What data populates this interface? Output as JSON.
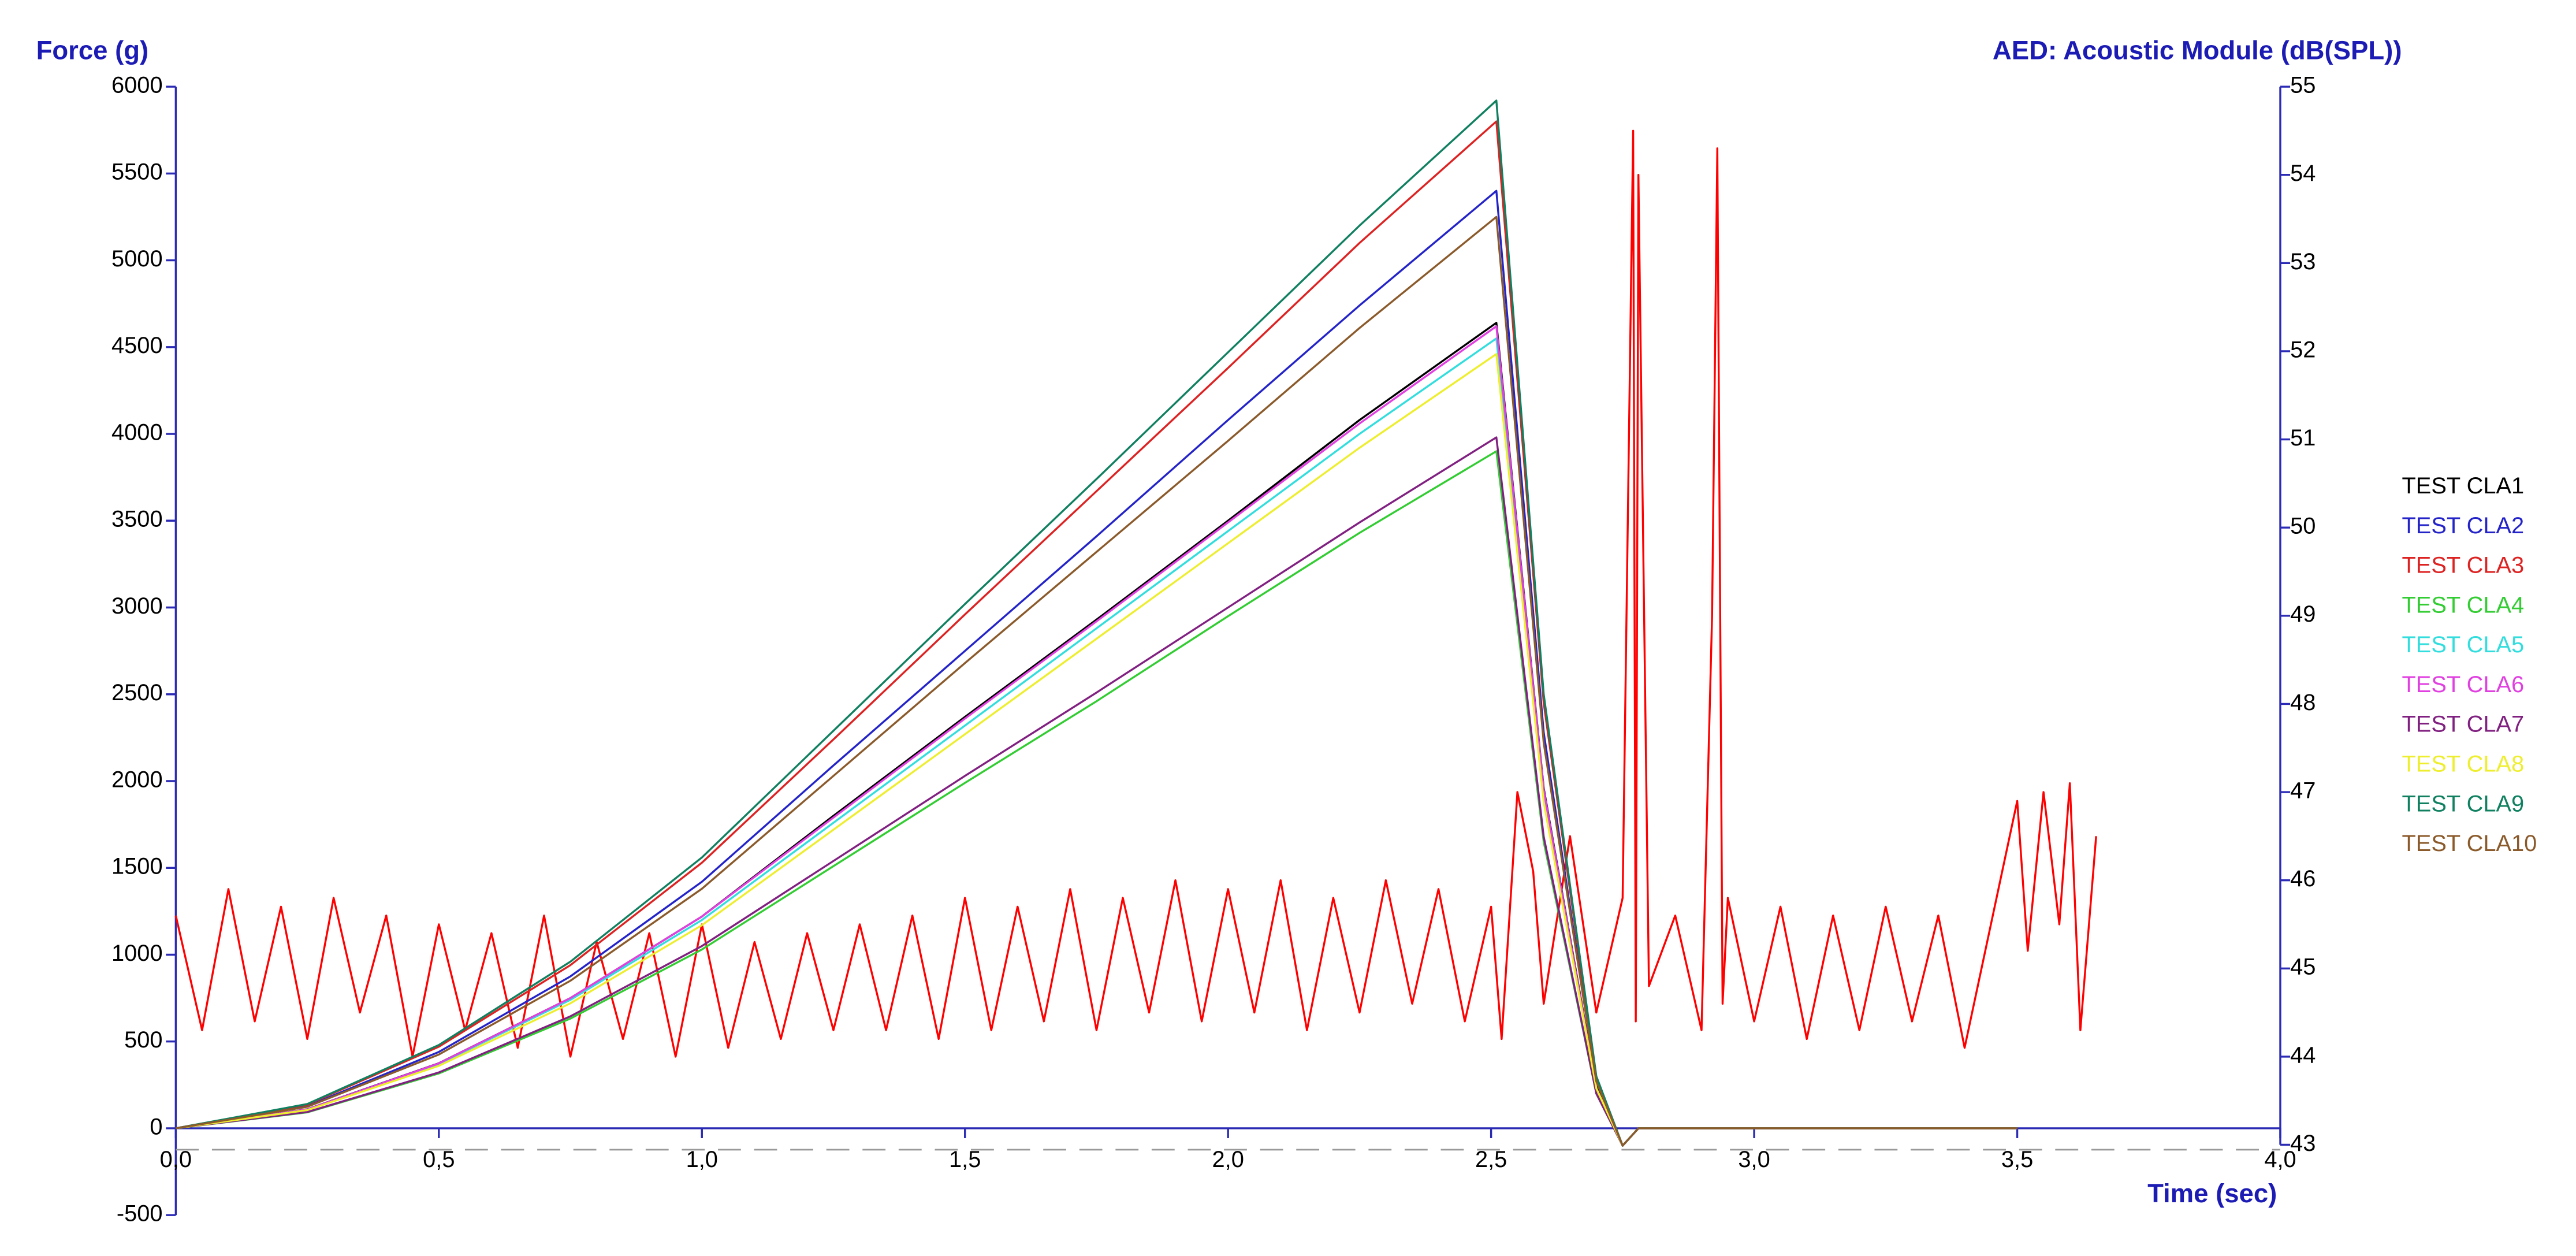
{
  "chart_data": {
    "type": "line",
    "y_label": "Force (g)",
    "y2_label": "AED: Acoustic Module (dB(SPL))",
    "x_label": "Time (sec)",
    "xlim": [
      0,
      4
    ],
    "xticks": [
      {
        "value": 0,
        "label": "0,0"
      },
      {
        "value": 0.5,
        "label": "0,5"
      },
      {
        "value": 1,
        "label": "1,0"
      },
      {
        "value": 1.5,
        "label": "1,5"
      },
      {
        "value": 2,
        "label": "2,0"
      },
      {
        "value": 2.5,
        "label": "2,5"
      },
      {
        "value": 3,
        "label": "3,0"
      },
      {
        "value": 3.5,
        "label": "3,5"
      },
      {
        "value": 4,
        "label": "4,0"
      }
    ],
    "ylim": [
      -500,
      6000
    ],
    "yticks": [
      -500,
      0,
      500,
      1000,
      1500,
      2000,
      2500,
      3000,
      3500,
      4000,
      4500,
      5000,
      5500,
      6000
    ],
    "y2lim": [
      43,
      55
    ],
    "y2ticks": [
      43,
      44,
      45,
      46,
      47,
      48,
      49,
      50,
      51,
      52,
      53,
      54,
      55
    ],
    "legend": "right",
    "x": [
      0,
      0.25,
      0.5,
      0.75,
      1,
      1.25,
      1.5,
      1.75,
      2,
      2.25,
      2.51,
      2.6,
      2.7,
      2.75,
      2.78,
      3.5
    ],
    "series": [
      {
        "name": "TEST CLA1",
        "color": "#000000",
        "values": [
          0,
          110,
          375,
          750,
          1220,
          1800,
          2370,
          2930,
          3500,
          4080,
          4640,
          1960,
          240,
          -100,
          0,
          0
        ]
      },
      {
        "name": "TEST CLA2",
        "color": "#2323c8",
        "values": [
          0,
          128,
          440,
          875,
          1420,
          2090,
          2750,
          3410,
          4080,
          4740,
          5400,
          2280,
          270,
          -100,
          0,
          0
        ]
      },
      {
        "name": "TEST CLA3",
        "color": "#dd2222",
        "values": [
          0,
          137,
          470,
          940,
          1530,
          2240,
          2960,
          3670,
          4380,
          5100,
          5800,
          2450,
          290,
          -100,
          0,
          0
        ]
      },
      {
        "name": "TEST CLA4",
        "color": "#33cc33",
        "values": [
          0,
          92,
          316,
          632,
          1030,
          1510,
          1990,
          2460,
          2950,
          3430,
          3900,
          1650,
          200,
          -100,
          0,
          0
        ]
      },
      {
        "name": "TEST CLA5",
        "color": "#33dddd",
        "values": [
          0,
          108,
          370,
          740,
          1200,
          1760,
          2320,
          2880,
          3440,
          4000,
          4550,
          1920,
          230,
          -100,
          0,
          0
        ]
      },
      {
        "name": "TEST CLA6",
        "color": "#e040e0",
        "values": [
          0,
          109,
          374,
          750,
          1220,
          1790,
          2360,
          2920,
          3490,
          4060,
          4620,
          1950,
          230,
          -100,
          0,
          0
        ]
      },
      {
        "name": "TEST CLA7",
        "color": "#802080",
        "values": [
          0,
          94,
          322,
          645,
          1050,
          1540,
          2030,
          2510,
          3000,
          3490,
          3980,
          1680,
          200,
          -100,
          0,
          0
        ]
      },
      {
        "name": "TEST CLA8",
        "color": "#eeee30",
        "values": [
          0,
          105,
          360,
          720,
          1170,
          1720,
          2270,
          2820,
          3370,
          3920,
          4460,
          1880,
          230,
          -100,
          0,
          0
        ]
      },
      {
        "name": "TEST CLA9",
        "color": "#108060",
        "values": [
          0,
          140,
          480,
          960,
          1560,
          2290,
          3020,
          3740,
          4470,
          5200,
          5920,
          2500,
          300,
          -100,
          0,
          0
        ]
      },
      {
        "name": "TEST CLA10",
        "color": "#8b5a2b",
        "values": [
          0,
          124,
          425,
          850,
          1380,
          2030,
          2680,
          3320,
          3960,
          4610,
          5250,
          2220,
          270,
          -100,
          0,
          0
        ]
      },
      {
        "color": "#ff0000",
        "axis": "y2",
        "x": [
          0,
          0.05,
          0.1,
          0.15,
          0.2,
          0.25,
          0.3,
          0.35,
          0.4,
          0.45,
          0.5,
          0.55,
          0.6,
          0.65,
          0.7,
          0.75,
          0.8,
          0.85,
          0.9,
          0.95,
          1,
          1.05,
          1.1,
          1.15,
          1.2,
          1.25,
          1.3,
          1.35,
          1.4,
          1.45,
          1.5,
          1.55,
          1.6,
          1.65,
          1.7,
          1.75,
          1.8,
          1.85,
          1.9,
          1.95,
          2,
          2.05,
          2.1,
          2.15,
          2.2,
          2.25,
          2.3,
          2.35,
          2.4,
          2.45,
          2.5,
          2.52,
          2.55,
          2.58,
          2.6,
          2.65,
          2.7,
          2.75,
          2.77,
          2.775,
          2.78,
          2.8,
          2.85,
          2.9,
          2.92,
          2.93,
          2.94,
          2.95,
          3,
          3.05,
          3.1,
          3.15,
          3.2,
          3.25,
          3.3,
          3.35,
          3.4,
          3.45,
          3.5,
          3.52,
          3.55,
          3.58,
          3.6,
          3.62,
          3.65
        ],
        "values": [
          45.6,
          44.3,
          45.9,
          44.4,
          45.7,
          44.2,
          45.8,
          44.5,
          45.6,
          44.0,
          45.5,
          44.3,
          45.4,
          44.1,
          45.6,
          44.0,
          45.3,
          44.2,
          45.4,
          44.0,
          45.5,
          44.1,
          45.3,
          44.2,
          45.4,
          44.3,
          45.5,
          44.3,
          45.6,
          44.2,
          45.8,
          44.3,
          45.7,
          44.4,
          45.9,
          44.3,
          45.8,
          44.5,
          46.0,
          44.4,
          45.9,
          44.5,
          46.0,
          44.3,
          45.8,
          44.5,
          46.0,
          44.6,
          45.9,
          44.4,
          45.7,
          44.2,
          47.0,
          46.1,
          44.6,
          46.5,
          44.5,
          45.8,
          54.5,
          44.4,
          54.0,
          44.8,
          45.6,
          44.3,
          49.0,
          54.3,
          44.6,
          45.8,
          44.4,
          45.7,
          44.2,
          45.6,
          44.3,
          45.7,
          44.4,
          45.6,
          44.1,
          45.5,
          46.9,
          45.2,
          47.0,
          45.5,
          47.1,
          44.3,
          46.5
        ]
      }
    ]
  }
}
